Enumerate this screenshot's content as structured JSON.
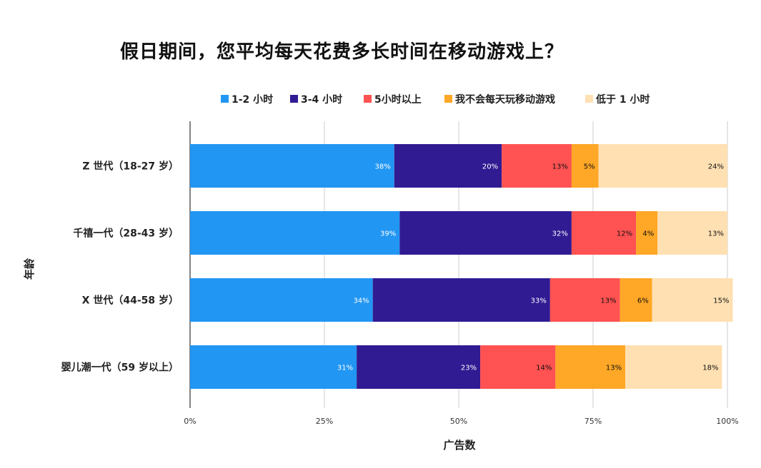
{
  "chart_data": {
    "type": "bar",
    "orientation": "horizontal",
    "stacked": true,
    "title": "假日期间，您平均每天花费多长时间在移动游戏上？",
    "xlabel": "广告数",
    "ylabel": "年龄",
    "xlim": [
      0,
      100
    ],
    "x_ticks": [
      "0%",
      "25%",
      "50%",
      "75%",
      "100%"
    ],
    "grid": true,
    "legend_position": "top",
    "categories": [
      "Z 世代（18-27 岁）",
      "千禧一代（28-43 岁）",
      "X 世代（44-58 岁）",
      "婴儿潮一代（59 岁以上）"
    ],
    "series": [
      {
        "name": "1-2 小时",
        "color": "#2196F3",
        "label_color": "#ffffff",
        "values": [
          38,
          39,
          34,
          31
        ]
      },
      {
        "name": "3-4 小时",
        "color": "#311B92",
        "label_color": "#ffffff",
        "values": [
          20,
          32,
          33,
          23
        ]
      },
      {
        "name": "5小时以上",
        "color": "#FF5252",
        "label_color": "#111111",
        "values": [
          13,
          12,
          13,
          14
        ]
      },
      {
        "name": "我不会每天玩移动游戏",
        "color": "#FFA726",
        "label_color": "#111111",
        "values": [
          5,
          4,
          6,
          13
        ]
      },
      {
        "name": "低于 1 小时",
        "color": "#FFE0B2",
        "label_color": "#111111",
        "values": [
          24,
          13,
          15,
          18
        ]
      }
    ]
  }
}
